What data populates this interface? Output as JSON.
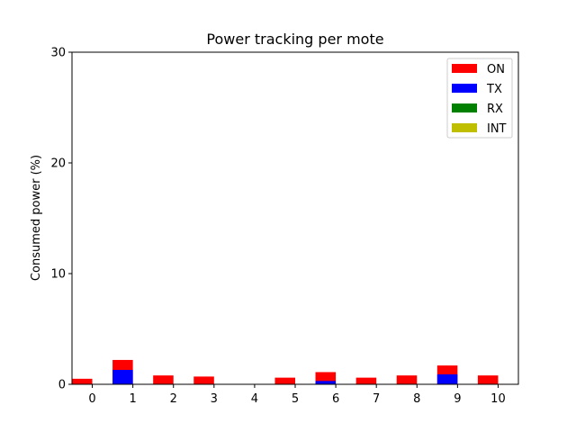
{
  "chart_data": {
    "type": "bar",
    "stacked": "overlay",
    "title": "Power tracking per mote",
    "xlabel": "",
    "ylabel": "Consumed power (%)",
    "ylim": [
      0,
      30
    ],
    "yticks": [
      "0",
      "10",
      "20",
      "30"
    ],
    "xlim": [
      -0.5,
      10.5
    ],
    "categories": [
      "0",
      "1",
      "2",
      "3",
      "4",
      "5",
      "6",
      "7",
      "8",
      "9",
      "10"
    ],
    "series": [
      {
        "name": "ON",
        "color": "#ff0000",
        "values": [
          0.5,
          2.2,
          0.8,
          0.7,
          0.0,
          0.6,
          1.1,
          0.6,
          0.8,
          1.7,
          0.8
        ]
      },
      {
        "name": "TX",
        "color": "#0000ff",
        "values": [
          0.0,
          1.3,
          0.0,
          0.0,
          0.0,
          0.0,
          0.3,
          0.0,
          0.0,
          0.9,
          0.0
        ]
      },
      {
        "name": "RX",
        "color": "#008000",
        "values": [
          0,
          0,
          0,
          0,
          0,
          0,
          0,
          0,
          0,
          0,
          0
        ]
      },
      {
        "name": "INT",
        "color": "#bfbf00",
        "values": [
          0,
          0,
          0,
          0,
          0,
          0,
          0,
          0,
          0,
          0,
          0
        ]
      }
    ],
    "grid": false,
    "legend_position": "top-right"
  }
}
